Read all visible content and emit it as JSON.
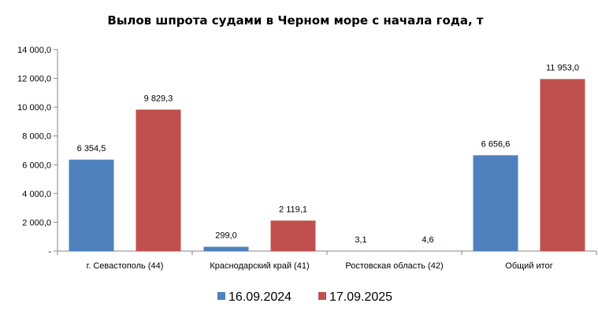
{
  "chart_data": {
    "type": "bar",
    "title": "Вылов шпрота судами в Черном море с начала  года, т",
    "categories": [
      "г. Севастополь (44)",
      "Краснодарский край (41)",
      "Ростовская область (42)",
      "Общий итог"
    ],
    "series": [
      {
        "name": "16.09.2024",
        "color": "#4f81bd",
        "values": [
          6354.5,
          299.0,
          3.1,
          6656.6
        ],
        "labels": [
          "6 354,5",
          "299,0",
          "3,1",
          "6 656,6"
        ]
      },
      {
        "name": "17.09.2025",
        "color": "#c0504d",
        "values": [
          9829.3,
          2119.1,
          4.6,
          11953.0
        ],
        "labels": [
          "9 829,3",
          "2 119,1",
          "4,6",
          "11 953,0"
        ]
      }
    ],
    "ylim": [
      0,
      14000
    ],
    "yticks": [
      0,
      2000,
      4000,
      6000,
      8000,
      10000,
      12000,
      14000
    ],
    "ytick_labels": [
      "-",
      "2 000,0",
      "4 000,0",
      "6 000,0",
      "8 000,0",
      "10 000,0",
      "12 000,0",
      "14 000,0"
    ],
    "grid": false,
    "legend": "bottom-center"
  }
}
